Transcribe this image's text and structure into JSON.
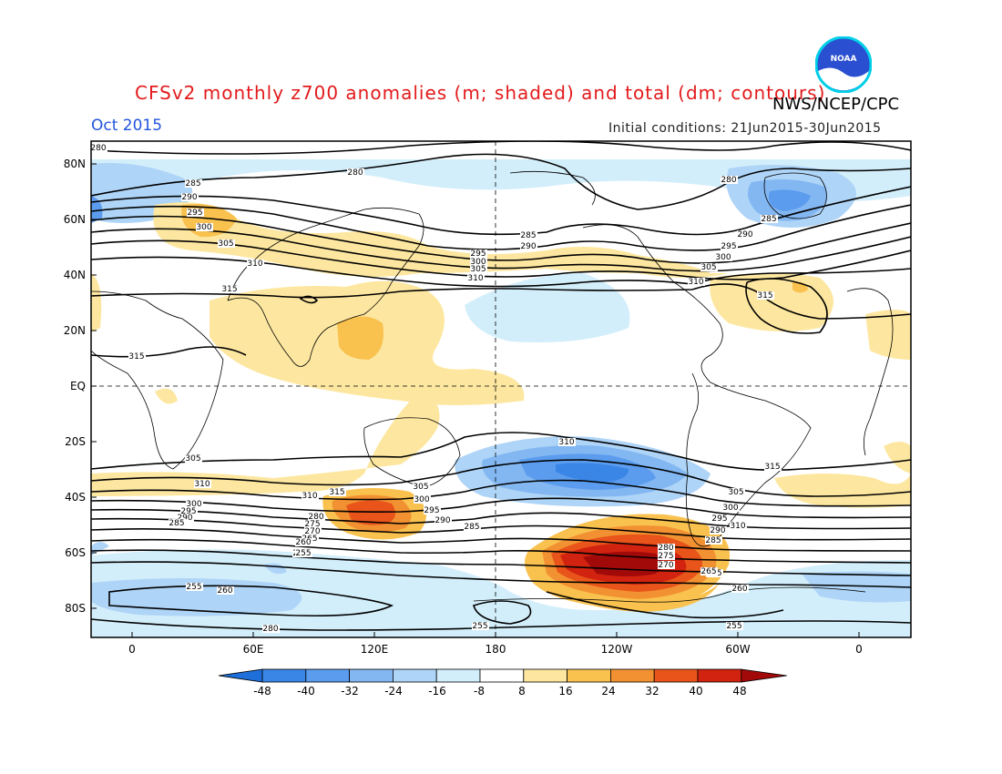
{
  "title": "CFSv2 monthly z700 anomalies (m; shaded) and total (dm; contours)",
  "agency": "NWS/NCEP/CPC",
  "logo_text": "NOAA",
  "month": "Oct 2015",
  "initial_conditions": "Initial conditions: 21Jun2015-30Jun2015",
  "lat_labels": [
    "80N",
    "60N",
    "40N",
    "20N",
    "EQ",
    "20S",
    "40S",
    "60S",
    "80S"
  ],
  "lon_labels": [
    "0",
    "60E",
    "120E",
    "180",
    "120W",
    "60W",
    "0"
  ],
  "colorbar": {
    "labels": [
      "-48",
      "-40",
      "-32",
      "-24",
      "-16",
      "-8",
      "8",
      "16",
      "24",
      "32",
      "40",
      "48"
    ],
    "colors": [
      "#1e6fd9",
      "#3a86e6",
      "#5b9cee",
      "#83b7f2",
      "#aed4f7",
      "#d3eefb",
      "#ffffff",
      "#fde7a0",
      "#f9c14e",
      "#f29131",
      "#e8541a",
      "#d1230f",
      "#a20a0a"
    ]
  },
  "contour_labels": [
    {
      "text": "280"
    },
    {
      "text": "280"
    },
    {
      "text": "285"
    },
    {
      "text": "290"
    },
    {
      "text": "295"
    },
    {
      "text": "300"
    },
    {
      "text": "305"
    },
    {
      "text": "310"
    },
    {
      "text": "315"
    },
    {
      "text": "315"
    },
    {
      "text": "295"
    },
    {
      "text": "300"
    },
    {
      "text": "305"
    },
    {
      "text": "310"
    },
    {
      "text": "285"
    },
    {
      "text": "290"
    },
    {
      "text": "280"
    },
    {
      "text": "285"
    },
    {
      "text": "290"
    },
    {
      "text": "295"
    },
    {
      "text": "300"
    },
    {
      "text": "305"
    },
    {
      "text": "310"
    },
    {
      "text": "315"
    },
    {
      "text": "310"
    },
    {
      "text": "315"
    },
    {
      "text": "310"
    },
    {
      "text": "305"
    },
    {
      "text": "300"
    },
    {
      "text": "295"
    },
    {
      "text": "290"
    },
    {
      "text": "285"
    },
    {
      "text": "310"
    },
    {
      "text": "305"
    },
    {
      "text": "300"
    },
    {
      "text": "295"
    },
    {
      "text": "290"
    },
    {
      "text": "285"
    },
    {
      "text": "280"
    },
    {
      "text": "275"
    },
    {
      "text": "270"
    },
    {
      "text": "265"
    },
    {
      "text": "260"
    },
    {
      "text": "255"
    },
    {
      "text": "255"
    },
    {
      "text": "260"
    },
    {
      "text": "280"
    },
    {
      "text": "255"
    },
    {
      "text": "255"
    },
    {
      "text": "305"
    },
    {
      "text": "300"
    },
    {
      "text": "295"
    },
    {
      "text": "290"
    },
    {
      "text": "285"
    },
    {
      "text": "280"
    },
    {
      "text": "275"
    },
    {
      "text": "270"
    },
    {
      "text": "265"
    },
    {
      "text": "260"
    },
    {
      "text": "255"
    },
    {
      "text": "310"
    },
    {
      "text": "315"
    },
    {
      "text": "265"
    }
  ]
}
